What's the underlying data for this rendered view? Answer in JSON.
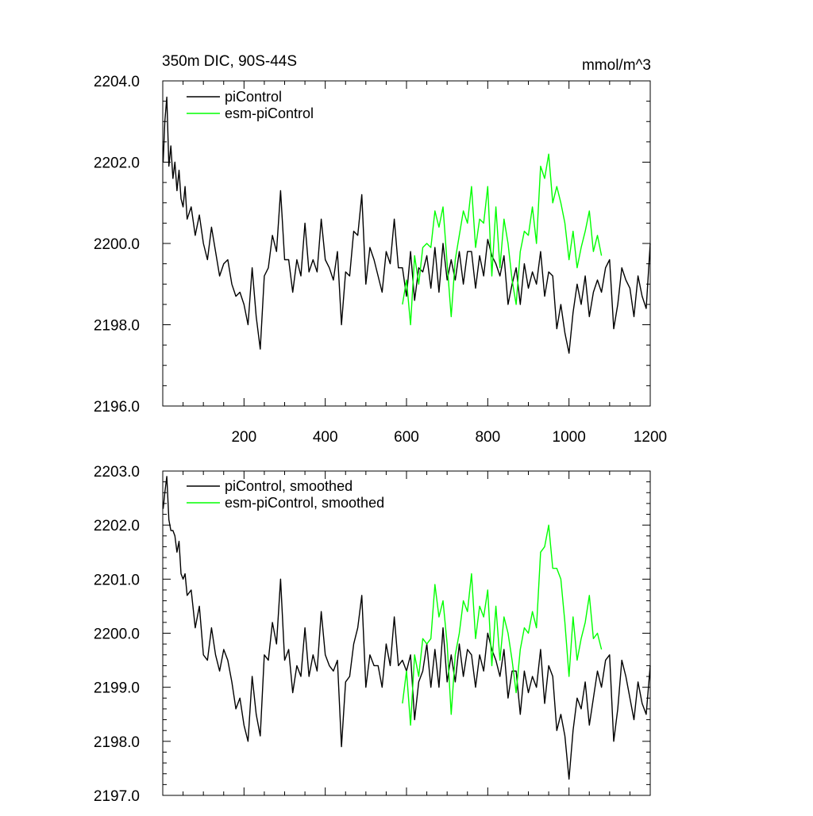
{
  "chart_data": [
    {
      "type": "line",
      "title": "350m DIC, 90S-44S",
      "units": "mmol/m^3",
      "xlim": [
        0,
        1200
      ],
      "ylim": [
        2196.0,
        2204.0
      ],
      "x_ticks": [
        200,
        400,
        600,
        800,
        1000,
        1200
      ],
      "x_tick_labels": [
        "200",
        "400",
        "600",
        "800",
        "1000",
        "1200"
      ],
      "y_ticks": [
        2196.0,
        2198.0,
        2200.0,
        2202.0,
        2204.0
      ],
      "y_tick_labels": [
        "2196.0",
        "2198.0",
        "2200.0",
        "2202.0",
        "2204.0"
      ],
      "legend_position": "top-left",
      "series": [
        {
          "name": "piControl",
          "color": "#000000",
          "x": [
            1,
            5,
            10,
            15,
            20,
            25,
            30,
            35,
            40,
            45,
            50,
            55,
            60,
            70,
            80,
            90,
            100,
            110,
            120,
            130,
            140,
            150,
            160,
            170,
            180,
            190,
            200,
            210,
            220,
            230,
            240,
            250,
            260,
            270,
            280,
            290,
            300,
            310,
            320,
            330,
            340,
            350,
            360,
            370,
            380,
            390,
            400,
            410,
            420,
            430,
            440,
            450,
            460,
            470,
            480,
            490,
            500,
            510,
            520,
            530,
            540,
            550,
            560,
            570,
            580,
            590,
            600,
            610,
            620,
            630,
            640,
            650,
            660,
            670,
            680,
            690,
            700,
            710,
            720,
            730,
            740,
            750,
            760,
            770,
            780,
            790,
            800,
            810,
            820,
            830,
            840,
            850,
            860,
            870,
            880,
            890,
            900,
            910,
            920,
            930,
            940,
            950,
            960,
            970,
            980,
            990,
            1000,
            1010,
            1020,
            1030,
            1040,
            1050,
            1060,
            1070,
            1080,
            1090,
            1100,
            1110,
            1120,
            1130,
            1140,
            1150,
            1160,
            1170,
            1180,
            1190,
            1200
          ],
          "values": [
            2202.0,
            2203.0,
            2203.6,
            2201.9,
            2202.4,
            2201.6,
            2202.0,
            2201.3,
            2201.8,
            2201.1,
            2200.9,
            2201.4,
            2200.6,
            2200.9,
            2200.2,
            2200.7,
            2200.0,
            2199.6,
            2200.4,
            2199.8,
            2199.2,
            2199.5,
            2199.6,
            2199.0,
            2198.7,
            2198.8,
            2198.5,
            2198.0,
            2199.4,
            2198.2,
            2197.4,
            2199.2,
            2199.4,
            2200.2,
            2199.8,
            2201.3,
            2199.6,
            2199.6,
            2198.8,
            2199.6,
            2199.2,
            2200.5,
            2199.3,
            2199.6,
            2199.3,
            2200.6,
            2199.6,
            2199.4,
            2199.1,
            2199.8,
            2198.0,
            2199.3,
            2199.2,
            2200.3,
            2200.2,
            2201.2,
            2199.0,
            2199.9,
            2199.6,
            2199.2,
            2198.8,
            2199.8,
            2199.5,
            2200.6,
            2199.4,
            2199.4,
            2198.7,
            2199.8,
            2198.6,
            2199.4,
            2199.3,
            2199.7,
            2198.9,
            2199.9,
            2198.8,
            2200.0,
            2199.1,
            2199.6,
            2199.1,
            2199.8,
            2199.0,
            2199.8,
            2199.8,
            2198.9,
            2199.7,
            2199.2,
            2200.1,
            2199.7,
            2199.5,
            2199.2,
            2199.7,
            2198.5,
            2199.0,
            2199.4,
            2198.5,
            2199.5,
            2198.9,
            2199.3,
            2199.0,
            2199.8,
            2198.7,
            2199.3,
            2199.2,
            2197.9,
            2198.5,
            2197.8,
            2197.3,
            2198.3,
            2199.0,
            2198.5,
            2199.2,
            2198.2,
            2198.8,
            2199.1,
            2198.8,
            2199.4,
            2199.6,
            2197.9,
            2198.5,
            2199.4,
            2199.1,
            2198.9,
            2198.2,
            2199.2,
            2198.7,
            2198.4,
            2200.0
          ]
        },
        {
          "name": "esm-piControl",
          "color": "#00ff00",
          "x": [
            590,
            600,
            610,
            620,
            630,
            640,
            650,
            660,
            670,
            680,
            690,
            700,
            710,
            720,
            730,
            740,
            750,
            760,
            770,
            780,
            790,
            800,
            810,
            820,
            830,
            840,
            850,
            860,
            870,
            880,
            890,
            900,
            910,
            920,
            930,
            940,
            950,
            960,
            970,
            980,
            990,
            1000,
            1010,
            1020,
            1030,
            1040,
            1050,
            1060,
            1070,
            1080
          ],
          "values": [
            2198.5,
            2199.1,
            2198.0,
            2199.7,
            2199.0,
            2199.9,
            2200.0,
            2199.9,
            2200.8,
            2200.4,
            2200.9,
            2199.5,
            2198.2,
            2199.6,
            2200.2,
            2200.8,
            2200.5,
            2201.4,
            2199.9,
            2200.6,
            2200.5,
            2201.4,
            2199.2,
            2200.9,
            2199.4,
            2200.6,
            2200.0,
            2199.1,
            2198.5,
            2199.8,
            2200.3,
            2200.2,
            2200.9,
            2200.0,
            2201.9,
            2201.6,
            2202.2,
            2201.0,
            2201.4,
            2201.0,
            2200.5,
            2199.6,
            2200.3,
            2199.4,
            2199.9,
            2200.3,
            2200.8,
            2199.8,
            2200.2,
            2199.7
          ]
        }
      ]
    },
    {
      "type": "line",
      "title": "",
      "units": "",
      "xlim": [
        0,
        1200
      ],
      "ylim": [
        2197.0,
        2203.0
      ],
      "x_ticks": [
        200,
        400,
        600,
        800,
        1000,
        1200
      ],
      "x_tick_labels": [],
      "y_ticks": [
        2197.0,
        2198.0,
        2199.0,
        2200.0,
        2201.0,
        2202.0,
        2203.0
      ],
      "y_tick_labels": [
        "2197.0",
        "2198.0",
        "2199.0",
        "2200.0",
        "2201.0",
        "2202.0",
        "2203.0"
      ],
      "legend_position": "top-left",
      "series": [
        {
          "name": "piControl, smoothed",
          "color": "#000000",
          "x": [
            1,
            5,
            10,
            15,
            20,
            25,
            30,
            35,
            40,
            45,
            50,
            55,
            60,
            70,
            80,
            90,
            100,
            110,
            120,
            130,
            140,
            150,
            160,
            170,
            180,
            190,
            200,
            210,
            220,
            230,
            240,
            250,
            260,
            270,
            280,
            290,
            300,
            310,
            320,
            330,
            340,
            350,
            360,
            370,
            380,
            390,
            400,
            410,
            420,
            430,
            440,
            450,
            460,
            470,
            480,
            490,
            500,
            510,
            520,
            530,
            540,
            550,
            560,
            570,
            580,
            590,
            600,
            610,
            620,
            630,
            640,
            650,
            660,
            670,
            680,
            690,
            700,
            710,
            720,
            730,
            740,
            750,
            760,
            770,
            780,
            790,
            800,
            810,
            820,
            830,
            840,
            850,
            860,
            870,
            880,
            890,
            900,
            910,
            920,
            930,
            940,
            950,
            960,
            970,
            980,
            990,
            1000,
            1010,
            1020,
            1030,
            1040,
            1050,
            1060,
            1070,
            1080,
            1090,
            1100,
            1110,
            1120,
            1130,
            1140,
            1150,
            1160,
            1170,
            1180,
            1190,
            1200
          ],
          "values": [
            2202.3,
            2202.6,
            2202.9,
            2202.1,
            2201.9,
            2201.9,
            2201.8,
            2201.5,
            2201.7,
            2201.1,
            2201.0,
            2201.1,
            2200.7,
            2200.8,
            2200.1,
            2200.5,
            2199.6,
            2199.5,
            2200.1,
            2199.6,
            2199.3,
            2199.7,
            2199.5,
            2199.1,
            2198.6,
            2198.8,
            2198.3,
            2198.0,
            2199.2,
            2198.5,
            2198.1,
            2199.6,
            2199.5,
            2200.2,
            2199.8,
            2201.0,
            2199.5,
            2199.7,
            2198.9,
            2199.4,
            2199.2,
            2200.1,
            2199.2,
            2199.6,
            2199.3,
            2200.4,
            2199.6,
            2199.4,
            2199.3,
            2199.5,
            2197.9,
            2199.1,
            2199.2,
            2199.8,
            2200.1,
            2200.7,
            2199.0,
            2199.6,
            2199.4,
            2199.4,
            2199.0,
            2199.8,
            2199.4,
            2200.3,
            2199.4,
            2199.5,
            2199.3,
            2199.6,
            2198.4,
            2199.1,
            2199.3,
            2199.8,
            2199.0,
            2199.7,
            2199.0,
            2200.1,
            2199.1,
            2199.6,
            2199.1,
            2199.8,
            2199.2,
            2199.7,
            2199.6,
            2199.0,
            2199.6,
            2199.3,
            2200.0,
            2199.7,
            2199.5,
            2199.2,
            2199.7,
            2198.8,
            2199.3,
            2199.3,
            2198.5,
            2199.3,
            2198.9,
            2199.2,
            2199.0,
            2199.7,
            2198.7,
            2199.4,
            2199.2,
            2198.2,
            2198.5,
            2198.1,
            2197.3,
            2198.2,
            2198.8,
            2198.6,
            2199.1,
            2198.3,
            2198.8,
            2199.3,
            2199.0,
            2199.5,
            2199.6,
            2198.0,
            2198.6,
            2199.5,
            2199.2,
            2198.8,
            2198.4,
            2199.1,
            2198.7,
            2198.5,
            2199.4
          ]
        },
        {
          "name": "esm-piControl, smoothed",
          "color": "#00ff00",
          "x": [
            590,
            600,
            610,
            620,
            630,
            640,
            650,
            660,
            670,
            680,
            690,
            700,
            710,
            720,
            730,
            740,
            750,
            760,
            770,
            780,
            790,
            800,
            810,
            820,
            830,
            840,
            850,
            860,
            870,
            880,
            890,
            900,
            910,
            920,
            930,
            940,
            950,
            960,
            970,
            980,
            990,
            1000,
            1010,
            1020,
            1030,
            1040,
            1050,
            1060,
            1070,
            1080
          ],
          "values": [
            2198.7,
            2199.3,
            2198.3,
            2199.6,
            2199.2,
            2199.9,
            2199.8,
            2199.9,
            2200.9,
            2200.3,
            2200.6,
            2199.8,
            2198.5,
            2199.6,
            2200.0,
            2200.6,
            2200.4,
            2201.1,
            2199.9,
            2200.5,
            2200.3,
            2200.8,
            2199.4,
            2200.5,
            2199.5,
            2200.3,
            2200.0,
            2199.5,
            2198.9,
            2199.7,
            2200.1,
            2200.0,
            2200.4,
            2200.1,
            2201.5,
            2201.6,
            2202.0,
            2201.2,
            2201.2,
            2201.0,
            2200.2,
            2199.2,
            2200.3,
            2199.5,
            2199.9,
            2200.2,
            2200.7,
            2199.9,
            2200.0,
            2199.7
          ]
        }
      ]
    }
  ]
}
